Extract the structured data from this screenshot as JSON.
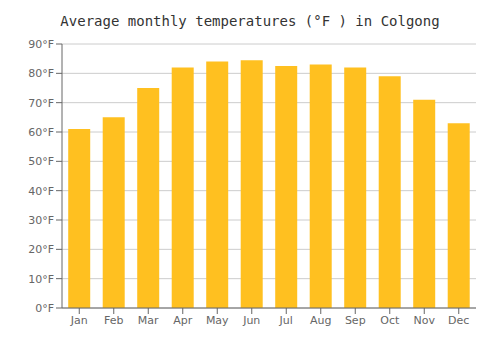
{
  "chart_data": {
    "type": "bar",
    "title": "Average monthly temperatures (°F ) in Colgong",
    "categories": [
      "Jan",
      "Feb",
      "Mar",
      "Apr",
      "May",
      "Jun",
      "Jul",
      "Aug",
      "Sep",
      "Oct",
      "Nov",
      "Dec"
    ],
    "values": [
      61,
      65,
      75,
      82,
      84,
      84.5,
      82.5,
      83,
      82,
      79,
      71,
      63
    ],
    "color": "#FFC020",
    "ylim": [
      0,
      90
    ],
    "yticks": [
      {
        "value": 0,
        "label": "0°F"
      },
      {
        "value": 10,
        "label": "10°F"
      },
      {
        "value": 20,
        "label": "20°F"
      },
      {
        "value": 30,
        "label": "30°F"
      },
      {
        "value": 40,
        "label": "40°F"
      },
      {
        "value": 50,
        "label": "50°F"
      },
      {
        "value": 60,
        "label": "60°F"
      },
      {
        "value": 70,
        "label": "70°F"
      },
      {
        "value": 80,
        "label": "80°F"
      },
      {
        "value": 90,
        "label": "90°F"
      }
    ],
    "grid": true
  }
}
